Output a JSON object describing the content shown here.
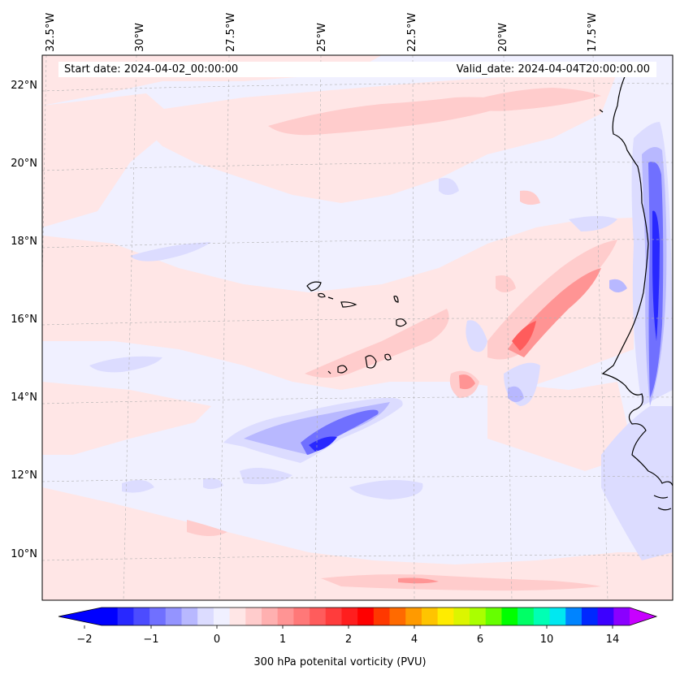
{
  "map": {
    "longitude_labels": [
      "32.5°W",
      "30°W",
      "27.5°W",
      "25°W",
      "22.5°W",
      "20°W",
      "17.5°W"
    ],
    "latitude_labels": [
      "22°N",
      "20°N",
      "18°N",
      "16°N",
      "14°N",
      "12°N",
      "10°N"
    ],
    "start_date_text": "Start date: 2024-04-02_00:00:00",
    "valid_date_text": "Valid_date: 2024-04-04T20:00:00.00",
    "field": "300 hPa potenital vorticity (PVU)",
    "background_color": "#f0f0ff"
  },
  "colorbar": {
    "label": "300 hPa potenital vorticity (PVU)",
    "ticks": [
      "−2",
      "−1",
      "0",
      "1",
      "2",
      "4",
      "6",
      "10",
      "14"
    ],
    "colors": [
      "#0000ff",
      "#2828ff",
      "#4c4cff",
      "#7070ff",
      "#9494ff",
      "#b8b8ff",
      "#dcdcff",
      "#f0f0ff",
      "#ffe6e6",
      "#ffcccc",
      "#ffb0b0",
      "#ff9494",
      "#ff7878",
      "#ff5c5c",
      "#ff3c3c",
      "#ff1e1e",
      "#ff0000",
      "#ff3800",
      "#ff6a00",
      "#ff9a00",
      "#ffc400",
      "#ffec00",
      "#dcf500",
      "#aaff00",
      "#66ff00",
      "#00ff00",
      "#00ff66",
      "#00ffb4",
      "#00e8f0",
      "#0084ff",
      "#0028ff",
      "#3c00ff",
      "#8a00ff"
    ],
    "under_color": "#0000ff",
    "over_color": "#c800ff"
  }
}
